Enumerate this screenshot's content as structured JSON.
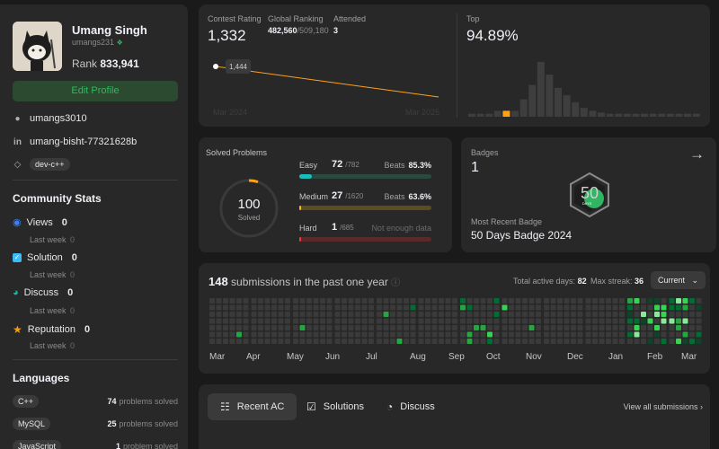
{
  "profile": {
    "name": "Umang Singh",
    "handle": "umangs231",
    "rank_label": "Rank",
    "rank_value": "833,941",
    "edit_label": "Edit Profile",
    "github": "umangs3010",
    "linkedin": "umang-bisht-77321628b",
    "skill_tag": "dev-c++"
  },
  "community": {
    "title": "Community Stats",
    "items": [
      {
        "label": "Views",
        "value": "0",
        "sub": "Last week",
        "delta": "0",
        "color": "#3b82f6"
      },
      {
        "label": "Solution",
        "value": "0",
        "sub": "Last week",
        "delta": "0",
        "color": "#38bdf8"
      },
      {
        "label": "Discuss",
        "value": "0",
        "sub": "Last week",
        "delta": "0",
        "color": "#14b8a6"
      },
      {
        "label": "Reputation",
        "value": "0",
        "sub": "Last week",
        "delta": "0",
        "color": "#f59e0b"
      }
    ]
  },
  "languages": {
    "title": "Languages",
    "items": [
      {
        "name": "C++",
        "count": "74",
        "suffix": "problems solved"
      },
      {
        "name": "MySQL",
        "count": "25",
        "suffix": "problems solved"
      },
      {
        "name": "JavaScript",
        "count": "1",
        "suffix": "problem solved"
      }
    ]
  },
  "contest": {
    "rating_label": "Contest Rating",
    "rating": "1,332",
    "global_label": "Global Ranking",
    "global_rank": "482,560",
    "global_total": "/509,180",
    "attended_label": "Attended",
    "attended": "3",
    "point_label": "1,444",
    "x_start": "Mar 2024",
    "x_end": "Mar 2025",
    "top_label": "Top",
    "top_value": "94.89%",
    "histogram": [
      0.1,
      0.1,
      0.1,
      0.15,
      0.15,
      0.15,
      0.35,
      0.6,
      1.0,
      0.78,
      0.55,
      0.42,
      0.3,
      0.2,
      0.15,
      0.12,
      0.1,
      0.1,
      0.1,
      0.1,
      0.1,
      0.1,
      0.1,
      0.1,
      0.1,
      0.1,
      0.1
    ],
    "highlight_index": 4
  },
  "solved": {
    "title": "Solved Problems",
    "total": "100",
    "total_label": "Solved",
    "rows": [
      {
        "name": "Easy",
        "count": "72",
        "total": "/782",
        "beats_label": "Beats",
        "beats": "85.3%",
        "ratio": 0.092,
        "color": "#1cbaba",
        "bg": "#2a4a41"
      },
      {
        "name": "Medium",
        "count": "27",
        "total": "/1620",
        "beats_label": "Beats",
        "beats": "63.6%",
        "ratio": 0.017,
        "color": "#ffb700",
        "bg": "#5a4d1f"
      },
      {
        "name": "Hard",
        "count": "1",
        "total": "/685",
        "beats_label": "",
        "beats": "Not enough data",
        "ratio": 0.0015,
        "color": "#f63737",
        "bg": "#5a2a2a"
      }
    ]
  },
  "badges": {
    "title": "Badges",
    "count": "1",
    "recent_label": "Most Recent Badge",
    "recent_name": "50 Days Badge 2024",
    "badge_text": "50",
    "badge_sub": "DAYS"
  },
  "submissions": {
    "count": "148",
    "label": "submissions in the past one year",
    "active_label": "Total active days:",
    "active_value": "82",
    "streak_label": "Max streak:",
    "streak_value": "36",
    "dropdown": "Current",
    "months": [
      "Mar",
      "Apr",
      "May",
      "Jun",
      "Jul",
      "Aug",
      "Sep",
      "Oct",
      "Nov",
      "Dec",
      "Jan",
      "Feb",
      "Mar"
    ]
  },
  "recent": {
    "tabs": [
      "Recent AC",
      "Solutions",
      "Discuss"
    ],
    "view_all": "View all submissions"
  }
}
